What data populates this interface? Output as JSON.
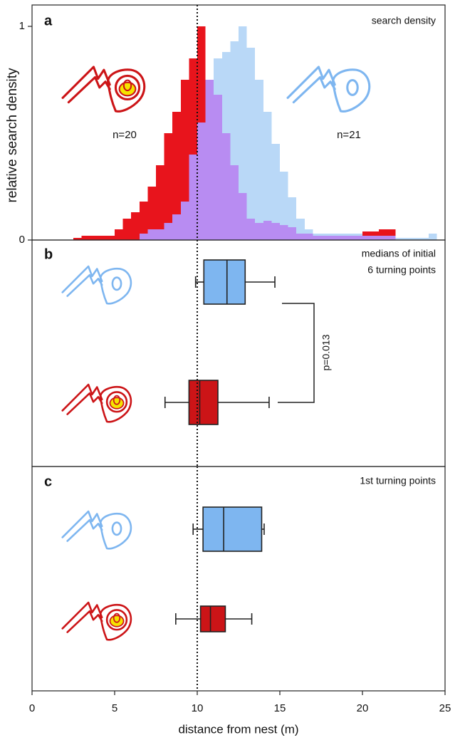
{
  "chart_data": [
    {
      "type": "histogram",
      "label": "a",
      "title": "search density",
      "y_label": "relative search density",
      "annotations": [
        "n=20",
        "n=21"
      ],
      "xlim": [
        0,
        25
      ],
      "ylim": [
        0,
        1.1
      ],
      "yticks": [
        0,
        1
      ],
      "reference_x": 10,
      "bins": [
        2.5,
        3,
        3.5,
        4,
        4.5,
        5,
        5.5,
        6,
        6.5,
        7,
        7.5,
        8,
        8.5,
        9,
        9.5,
        10,
        10.5,
        11,
        11.5,
        12,
        12.5,
        13,
        13.5,
        14,
        14.5,
        15,
        15.5,
        16,
        16.5,
        17,
        17.5,
        18,
        18.5,
        19,
        19.5,
        20,
        20.5,
        21,
        21.5,
        22,
        22.5,
        23,
        23.5,
        24,
        24.5,
        25
      ],
      "overlap_color": "#b88cf2",
      "series": [
        {
          "color": "#e8141c",
          "values": [
            0.01,
            0.02,
            0.02,
            0.02,
            0.02,
            0.05,
            0.1,
            0.13,
            0.18,
            0.25,
            0.35,
            0.5,
            0.6,
            0.75,
            0.85,
            1,
            0.75,
            0.68,
            0.5,
            0.35,
            0.22,
            0.1,
            0.08,
            0.09,
            0.08,
            0.07,
            0.06,
            0.03,
            0.03,
            0.02,
            0.02,
            0.02,
            0.02,
            0.02,
            0.02,
            0.04,
            0.04,
            0.05,
            0.05,
            0,
            0,
            0,
            0,
            0,
            0
          ]
        },
        {
          "color": "#b9d8f7",
          "values": [
            0,
            0,
            0,
            0,
            0,
            0,
            0,
            0,
            0.03,
            0.05,
            0.05,
            0.08,
            0.12,
            0.18,
            0.4,
            0.55,
            0.75,
            0.85,
            0.88,
            0.93,
            1,
            0.9,
            0.75,
            0.6,
            0.45,
            0.32,
            0.2,
            0.1,
            0.05,
            0.03,
            0.03,
            0.03,
            0.03,
            0.03,
            0.03,
            0.02,
            0.02,
            0.02,
            0.02,
            0.01,
            0.01,
            0.01,
            0.01,
            0.03,
            0
          ]
        }
      ]
    },
    {
      "type": "boxplot",
      "label": "b",
      "title": [
        "medians of initial",
        "6 turning points"
      ],
      "annotations": [
        "p=0.013"
      ],
      "xlim": [
        0,
        25
      ],
      "reference_x": 10,
      "boxes": [
        {
          "color": "#7eb6f0",
          "min": 9.9,
          "q1": 10.4,
          "median": 11.8,
          "q3": 12.9,
          "max": 14.7
        },
        {
          "color": "#cc1417",
          "min": 8.05,
          "q1": 9.5,
          "median": 10.15,
          "q3": 11.25,
          "max": 14.35
        }
      ]
    },
    {
      "type": "boxplot",
      "label": "c",
      "title": [
        "1st turning points"
      ],
      "xlim": [
        0,
        25
      ],
      "xticks": [
        0,
        5,
        10,
        15,
        20,
        25
      ],
      "x_label": "distance from nest (m)",
      "reference_x": 10,
      "boxes": [
        {
          "color": "#7eb6f0",
          "min": 9.75,
          "q1": 10.35,
          "median": 11.6,
          "q3": 13.9,
          "max": 14.05
        },
        {
          "color": "#cc1417",
          "min": 8.7,
          "q1": 10.2,
          "median": 10.8,
          "q3": 11.7,
          "max": 13.3
        }
      ]
    }
  ]
}
